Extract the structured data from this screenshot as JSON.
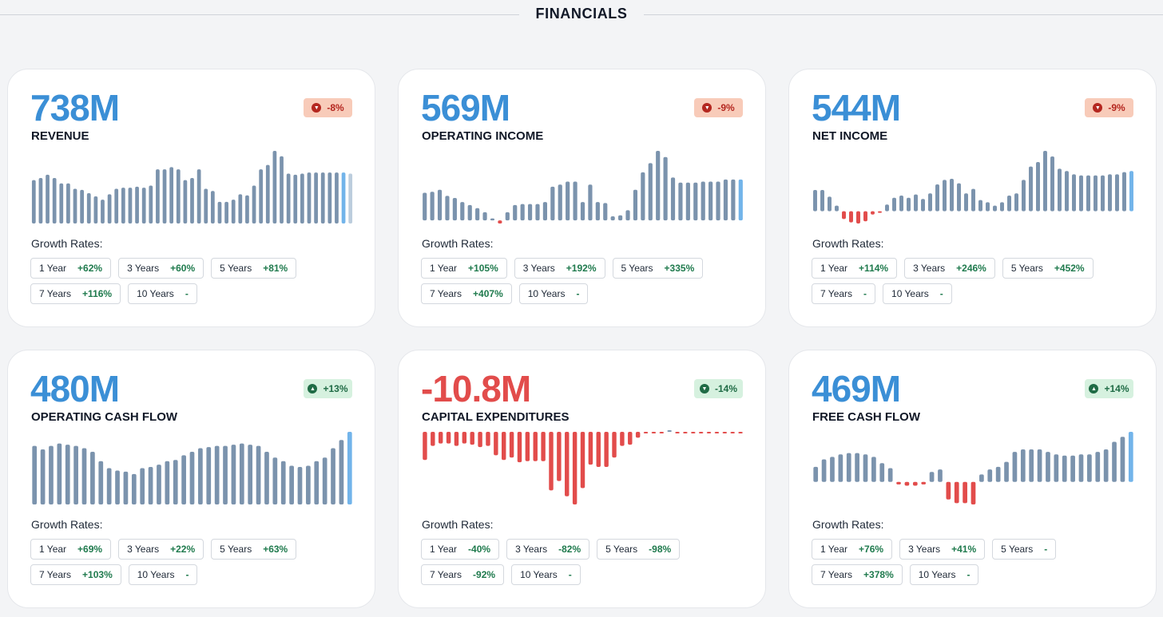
{
  "section_title": "FINANCIALS",
  "growth_title": "Growth Rates:",
  "colors": {
    "accent": "#3b8fd6",
    "bar_hist": "#7b93ad",
    "bar_last": "#72b4ea",
    "bar_proj": "#bccddd",
    "negative": "#e24c4b",
    "badge_down_bg": "#f8cbb9",
    "badge_up_bg": "#d6f1df"
  },
  "cards": [
    {
      "value": "738M",
      "metric": "REVENUE",
      "badge": "-8%",
      "badge_dir": "down",
      "badge_icon": "chevron-down-icon",
      "value_negative": false,
      "growth": [
        {
          "label": "1 Year",
          "value": "+62%"
        },
        {
          "label": "3 Years",
          "value": "+60%"
        },
        {
          "label": "5 Years",
          "value": "+81%"
        },
        {
          "label": "7 Years",
          "value": "+116%"
        },
        {
          "label": "10 Years",
          "value": "-"
        }
      ]
    },
    {
      "value": "569M",
      "metric": "OPERATING INCOME",
      "badge": "-9%",
      "badge_dir": "down",
      "badge_icon": "chevron-down-icon",
      "value_negative": false,
      "growth": [
        {
          "label": "1 Year",
          "value": "+105%"
        },
        {
          "label": "3 Years",
          "value": "+192%"
        },
        {
          "label": "5 Years",
          "value": "+335%"
        },
        {
          "label": "7 Years",
          "value": "+407%"
        },
        {
          "label": "10 Years",
          "value": "-"
        }
      ]
    },
    {
      "value": "544M",
      "metric": "NET INCOME",
      "badge": "-9%",
      "badge_dir": "down",
      "badge_icon": "chevron-down-icon",
      "value_negative": false,
      "growth": [
        {
          "label": "1 Year",
          "value": "+114%"
        },
        {
          "label": "3 Years",
          "value": "+246%"
        },
        {
          "label": "5 Years",
          "value": "+452%"
        },
        {
          "label": "7 Years",
          "value": "-"
        },
        {
          "label": "10 Years",
          "value": "-"
        }
      ]
    },
    {
      "value": "480M",
      "metric": "OPERATING CASH FLOW",
      "badge": "+13%",
      "badge_dir": "up",
      "badge_icon": "chevron-up-icon",
      "value_negative": false,
      "growth": [
        {
          "label": "1 Year",
          "value": "+69%"
        },
        {
          "label": "3 Years",
          "value": "+22%"
        },
        {
          "label": "5 Years",
          "value": "+63%"
        },
        {
          "label": "7 Years",
          "value": "+103%"
        },
        {
          "label": "10 Years",
          "value": "-"
        }
      ]
    },
    {
      "value": "-10.8M",
      "metric": "CAPITAL EXPENDITURES",
      "badge": "-14%",
      "badge_dir": "up",
      "badge_icon": "chevron-down-icon",
      "value_negative": true,
      "growth": [
        {
          "label": "1 Year",
          "value": "-40%"
        },
        {
          "label": "3 Years",
          "value": "-82%"
        },
        {
          "label": "5 Years",
          "value": "-98%"
        },
        {
          "label": "7 Years",
          "value": "-92%"
        },
        {
          "label": "10 Years",
          "value": "-"
        }
      ]
    },
    {
      "value": "469M",
      "metric": "FREE CASH FLOW",
      "badge": "+14%",
      "badge_dir": "up",
      "badge_icon": "chevron-up-icon",
      "value_negative": false,
      "growth": [
        {
          "label": "1 Year",
          "value": "+76%"
        },
        {
          "label": "3 Years",
          "value": "+41%"
        },
        {
          "label": "5 Years",
          "value": "-"
        },
        {
          "label": "7 Years",
          "value": "+378%"
        },
        {
          "label": "10 Years",
          "value": "-"
        }
      ]
    }
  ],
  "chart_data": [
    {
      "type": "bar",
      "title": "REVENUE",
      "last_actual_index": 45,
      "values": [
        40,
        42,
        45,
        42,
        37,
        37,
        32,
        31,
        28,
        25,
        22,
        27,
        32,
        33,
        33,
        34,
        33,
        35,
        50,
        50,
        52,
        50,
        40,
        42,
        50,
        32,
        30,
        20,
        20,
        22,
        27,
        26,
        35,
        50,
        54,
        67,
        62,
        46,
        45,
        46,
        47,
        47,
        47,
        47,
        47,
        47,
        46
      ]
    },
    {
      "type": "bar",
      "title": "OPERATING INCOME",
      "last_actual_index": 45,
      "values": [
        27,
        28,
        30,
        24,
        22,
        18,
        15,
        12,
        8,
        2,
        -3,
        8,
        15,
        16,
        16,
        16,
        18,
        33,
        35,
        38,
        38,
        18,
        35,
        18,
        17,
        4,
        5,
        10,
        30,
        47,
        56,
        68,
        62,
        42,
        37,
        37,
        37,
        38,
        38,
        38,
        40,
        40,
        40
      ]
    },
    {
      "type": "bar",
      "title": "NET INCOME",
      "last_actual_index": 45,
      "values": [
        19,
        19,
        13,
        5,
        -7,
        -10,
        -11,
        -9,
        -3,
        -1,
        6,
        12,
        14,
        12,
        15,
        11,
        16,
        24,
        28,
        29,
        25,
        16,
        20,
        10,
        8,
        5,
        8,
        14,
        16,
        28,
        40,
        44,
        54,
        49,
        38,
        36,
        33,
        32,
        32,
        32,
        32,
        33,
        33,
        35,
        36
      ]
    },
    {
      "type": "bar",
      "title": "OPERATING CASH FLOW",
      "last_actual_index": 52,
      "values": [
        50,
        47,
        50,
        52,
        51,
        50,
        48,
        45,
        37,
        31,
        29,
        28,
        26,
        31,
        32,
        34,
        37,
        38,
        42,
        45,
        48,
        49,
        50,
        50,
        51,
        52,
        51,
        50,
        45,
        40,
        37,
        33,
        32,
        33,
        37,
        40,
        48,
        55,
        62
      ]
    },
    {
      "type": "bar",
      "title": "CAPITAL EXPENDITURES",
      "last_actual_index": 52,
      "values": [
        -24,
        -12,
        -10,
        -10,
        -12,
        -10,
        -11,
        -13,
        -12,
        -20,
        -24,
        -22,
        -26,
        -25,
        -25,
        -25,
        -50,
        -42,
        -55,
        -62,
        -48,
        -28,
        -30,
        -30,
        -22,
        -12,
        -11,
        -5,
        -1,
        -1,
        -1,
        0,
        -1,
        -1,
        -1,
        -1,
        -1,
        -1,
        -1,
        -1,
        -1
      ]
    },
    {
      "type": "bar",
      "title": "FREE CASH FLOW",
      "last_actual_index": 52,
      "values": [
        12,
        18,
        20,
        22,
        23,
        23,
        22,
        20,
        15,
        11,
        -2,
        -3,
        -3,
        -2,
        8,
        10,
        -14,
        -17,
        -17,
        -18,
        6,
        10,
        12,
        16,
        24,
        26,
        26,
        26,
        24,
        22,
        21,
        21,
        22,
        22,
        24,
        26,
        32,
        36,
        40
      ]
    }
  ]
}
